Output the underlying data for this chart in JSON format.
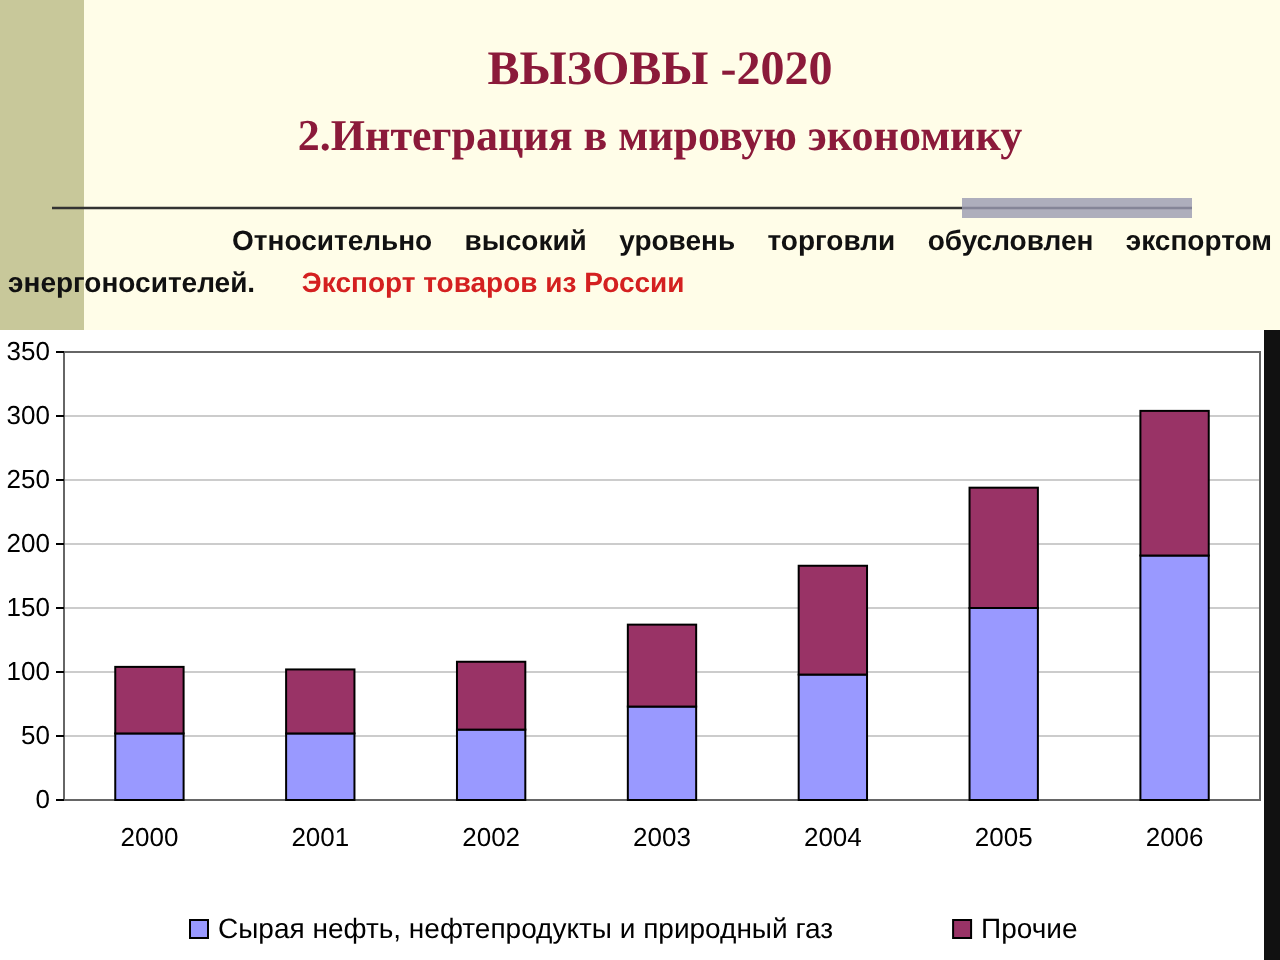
{
  "chart_data": {
    "type": "bar",
    "title": "ВЫЗОВЫ -2020",
    "subtitle": "2.Интеграция в мировую экономику",
    "annotations": [
      "Относительно высокий уровень торговли обусловлен экспортом энергоносителей.",
      "Экспорт товаров из России"
    ],
    "categories": [
      "2000",
      "2001",
      "2002",
      "2003",
      "2004",
      "2005",
      "2006"
    ],
    "series": [
      {
        "name": "Сырая нефть, нефтепродукты и природный газ",
        "color": "#9999ff",
        "values": [
          52,
          52,
          55,
          73,
          98,
          150,
          191
        ]
      },
      {
        "name": "Прочие",
        "color": "#993366",
        "values": [
          52,
          50,
          53,
          64,
          85,
          94,
          113
        ]
      }
    ],
    "stacked": true,
    "ylim": [
      0,
      350
    ],
    "yticks": [
      0,
      50,
      100,
      150,
      200,
      250,
      300,
      350
    ],
    "grid": "y",
    "legend": "bottom"
  }
}
